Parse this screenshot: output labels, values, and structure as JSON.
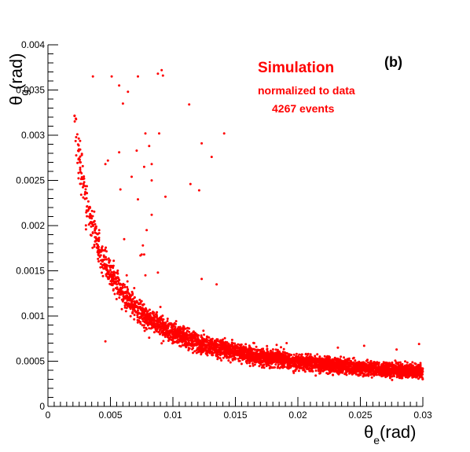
{
  "chart_data": {
    "type": "scatter",
    "title": "",
    "xlabel": {
      "main": "θ",
      "sub": "e",
      "tail": "(rad)"
    },
    "ylabel": {
      "main": "θ",
      "sub": "g",
      "tail": "(rad)"
    },
    "xlim": [
      0,
      0.03
    ],
    "ylim": [
      0,
      0.004
    ],
    "grid": false,
    "x_ticks": [
      {
        "value": 0,
        "label": "0"
      },
      {
        "value": 0.005,
        "label": "0.005"
      },
      {
        "value": 0.01,
        "label": "0.01"
      },
      {
        "value": 0.015,
        "label": "0.015"
      },
      {
        "value": 0.02,
        "label": "0.02"
      },
      {
        "value": 0.025,
        "label": "0.025"
      },
      {
        "value": 0.03,
        "label": "0.03"
      }
    ],
    "y_ticks": [
      {
        "value": 0,
        "label": "0"
      },
      {
        "value": 0.0005,
        "label": "0.0005"
      },
      {
        "value": 0.001,
        "label": "0.001"
      },
      {
        "value": 0.0015,
        "label": "0.0015"
      },
      {
        "value": 0.002,
        "label": "0.002"
      },
      {
        "value": 0.0025,
        "label": "0.0025"
      },
      {
        "value": 0.003,
        "label": "0.003"
      },
      {
        "value": 0.0035,
        "label": "0.0035"
      },
      {
        "value": 0.004,
        "label": "0.004"
      }
    ],
    "annotations": {
      "title": "Simulation",
      "line1": "normalized to data",
      "line2": "4267 events",
      "panel_tag": "(b)"
    },
    "series": [
      {
        "color": "#ff0000",
        "n_points": 4267,
        "band_model": "theta_g ≈ 6.5e-6 / theta_e + 1.7e-4 (main kinematic band)",
        "band_x_range": [
          0.0021,
          0.03
        ],
        "outliers": [
          [
            0.0036,
            0.00365
          ],
          [
            0.0051,
            0.00365
          ],
          [
            0.0057,
            0.00355
          ],
          [
            0.0064,
            0.00348
          ],
          [
            0.0072,
            0.00365
          ],
          [
            0.0088,
            0.00368
          ],
          [
            0.0091,
            0.00372
          ],
          [
            0.0092,
            0.00366
          ],
          [
            0.006,
            0.00335
          ],
          [
            0.0113,
            0.00334
          ],
          [
            0.0078,
            0.00302
          ],
          [
            0.0089,
            0.00302
          ],
          [
            0.0141,
            0.00302
          ],
          [
            0.0123,
            0.00291
          ],
          [
            0.0081,
            0.00288
          ],
          [
            0.0057,
            0.00281
          ],
          [
            0.0071,
            0.00283
          ],
          [
            0.0131,
            0.00276
          ],
          [
            0.0046,
            0.00268
          ],
          [
            0.0048,
            0.00272
          ],
          [
            0.0077,
            0.00265
          ],
          [
            0.0083,
            0.00268
          ],
          [
            0.0067,
            0.00254
          ],
          [
            0.0083,
            0.0025
          ],
          [
            0.0114,
            0.00246
          ],
          [
            0.0029,
            0.00248
          ],
          [
            0.0058,
            0.0024
          ],
          [
            0.0121,
            0.00239
          ],
          [
            0.0094,
            0.00232
          ],
          [
            0.0072,
            0.00229
          ],
          [
            0.0041,
            0.00195
          ],
          [
            0.0079,
            0.00195
          ],
          [
            0.0083,
            0.00212
          ],
          [
            0.0061,
            0.00185
          ],
          [
            0.0076,
            0.00178
          ],
          [
            0.0077,
            0.00168
          ],
          [
            0.0074,
            0.00167
          ],
          [
            0.0075,
            0.00168
          ],
          [
            0.0063,
            0.00145
          ],
          [
            0.0078,
            0.00145
          ],
          [
            0.0123,
            0.00141
          ],
          [
            0.0088,
            0.00148
          ],
          [
            0.0135,
            0.00135
          ],
          [
            0.009,
            0.0011
          ],
          [
            0.0046,
            0.00072
          ],
          [
            0.0092,
            0.00092
          ],
          [
            0.0104,
            0.00077
          ],
          [
            0.0165,
            0.0007
          ],
          [
            0.0183,
            0.00068
          ],
          [
            0.0232,
            0.00065
          ],
          [
            0.0253,
            0.00067
          ],
          [
            0.0297,
            0.00069
          ],
          [
            0.0279,
            0.00063
          ],
          [
            0.0191,
            0.0007
          ],
          [
            0.0081,
            0.00076
          ]
        ]
      }
    ]
  }
}
